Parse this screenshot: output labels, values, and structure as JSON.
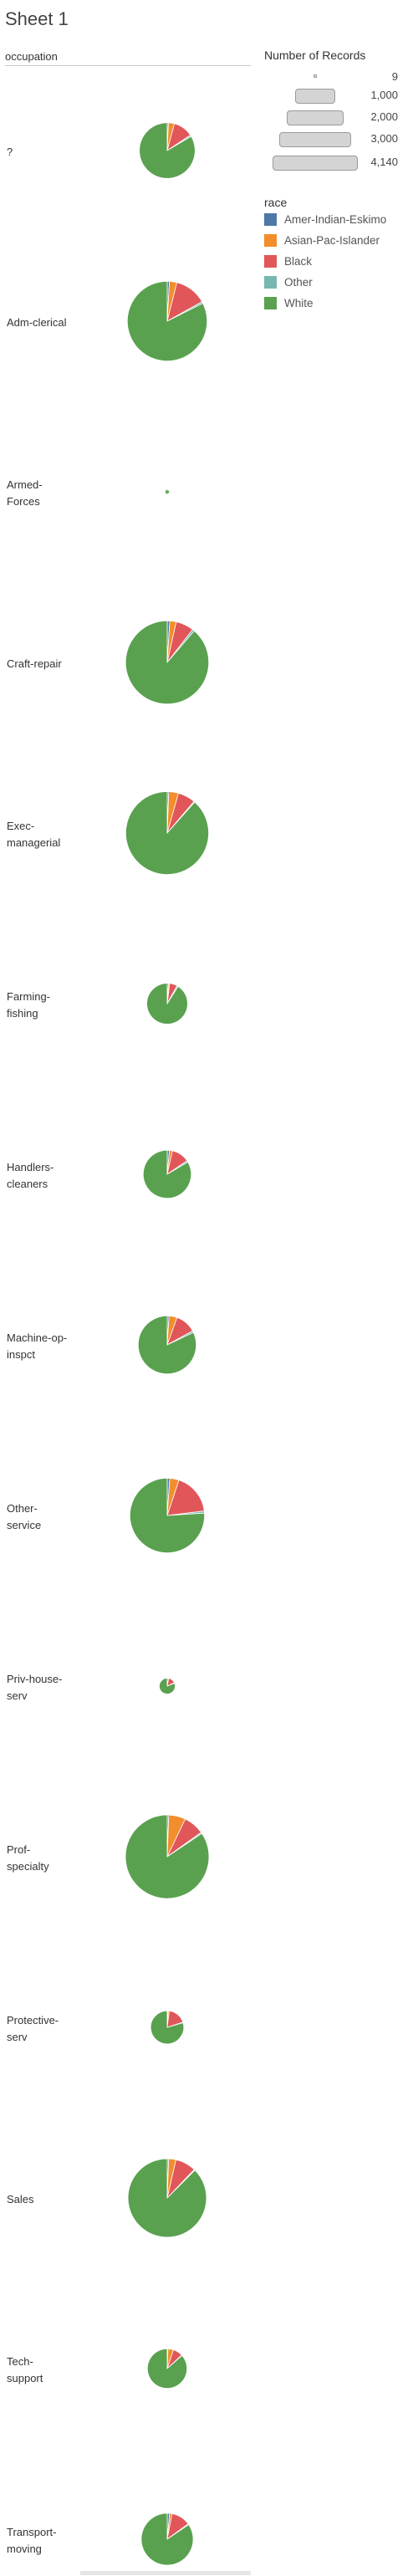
{
  "sheet": {
    "title": "Sheet 1",
    "column_header": "occupation"
  },
  "legend": {
    "size_title": "Number of Records",
    "size_items": [
      {
        "label": "9",
        "value": 9
      },
      {
        "label": "1,000",
        "value": 1000
      },
      {
        "label": "2,000",
        "value": 2000
      },
      {
        "label": "3,000",
        "value": 3000
      },
      {
        "label": "4,140",
        "value": 4140
      }
    ],
    "color_title": "race",
    "color_items": [
      {
        "label": "Amer-Indian-Eskimo",
        "color": "#4e79a7"
      },
      {
        "label": "Asian-Pac-Islander",
        "color": "#f28e2b"
      },
      {
        "label": "Black",
        "color": "#e15759"
      },
      {
        "label": "Other",
        "color": "#76b7b2"
      },
      {
        "label": "White",
        "color": "#59a14f"
      }
    ]
  },
  "chart_data": {
    "type": "pie",
    "size_field": "Number of Records",
    "color_field": "race",
    "races": [
      "Amer-Indian-Eskimo",
      "Asian-Pac-Islander",
      "Black",
      "Other",
      "White"
    ],
    "rows": [
      {
        "occupation": "?",
        "label_lines": [
          "?"
        ],
        "total": 1840,
        "shares": [
          0.007,
          0.035,
          0.115,
          0.008,
          0.835
        ]
      },
      {
        "occupation": "Adm-clerical",
        "label_lines": [
          "Adm-clerical"
        ],
        "total": 3770,
        "shares": [
          0.009,
          0.03,
          0.13,
          0.007,
          0.824
        ]
      },
      {
        "occupation": "Armed-Forces",
        "label_lines": [
          "Armed-",
          "Forces"
        ],
        "total": 9,
        "shares": [
          0.0,
          0.0,
          0.11,
          0.0,
          0.89
        ]
      },
      {
        "occupation": "Craft-repair",
        "label_lines": [
          "Craft-repair"
        ],
        "total": 4100,
        "shares": [
          0.01,
          0.025,
          0.07,
          0.008,
          0.887
        ]
      },
      {
        "occupation": "Exec-managerial",
        "label_lines": [
          "Exec-",
          "managerial"
        ],
        "total": 4070,
        "shares": [
          0.006,
          0.038,
          0.068,
          0.004,
          0.884
        ]
      },
      {
        "occupation": "Farming-fishing",
        "label_lines": [
          "Farming-",
          "fishing"
        ],
        "total": 990,
        "shares": [
          0.01,
          0.01,
          0.06,
          0.01,
          0.91
        ]
      },
      {
        "occupation": "Handlers-cleaners",
        "label_lines": [
          "Handlers-",
          "cleaners"
        ],
        "total": 1370,
        "shares": [
          0.015,
          0.02,
          0.12,
          0.01,
          0.835
        ]
      },
      {
        "occupation": "Machine-op-inspct",
        "label_lines": [
          "Machine-op-",
          "inspct"
        ],
        "total": 2000,
        "shares": [
          0.01,
          0.045,
          0.115,
          0.01,
          0.82
        ]
      },
      {
        "occupation": "Other-service",
        "label_lines": [
          "Other-",
          "service"
        ],
        "total": 3300,
        "shares": [
          0.011,
          0.04,
          0.18,
          0.009,
          0.76
        ]
      },
      {
        "occupation": "Priv-house-serv",
        "label_lines": [
          "Priv-house-",
          "serv"
        ],
        "total": 150,
        "shares": [
          0.0,
          0.03,
          0.15,
          0.01,
          0.81
        ]
      },
      {
        "occupation": "Prof-specialty",
        "label_lines": [
          "Prof-",
          "specialty"
        ],
        "total": 4140,
        "shares": [
          0.006,
          0.065,
          0.08,
          0.005,
          0.844
        ]
      },
      {
        "occupation": "Protective-serv",
        "label_lines": [
          "Protective-",
          "serv"
        ],
        "total": 650,
        "shares": [
          0.008,
          0.012,
          0.18,
          0.005,
          0.795
        ]
      },
      {
        "occupation": "Sales",
        "label_lines": [
          "Sales"
        ],
        "total": 3650,
        "shares": [
          0.006,
          0.03,
          0.085,
          0.004,
          0.875
        ]
      },
      {
        "occupation": "Tech-support",
        "label_lines": [
          "Tech-",
          "support"
        ],
        "total": 930,
        "shares": [
          0.006,
          0.045,
          0.08,
          0.004,
          0.865
        ]
      },
      {
        "occupation": "Transport-moving",
        "label_lines": [
          "Transport-",
          "moving"
        ],
        "total": 1600,
        "shares": [
          0.015,
          0.015,
          0.12,
          0.005,
          0.845
        ]
      }
    ]
  }
}
